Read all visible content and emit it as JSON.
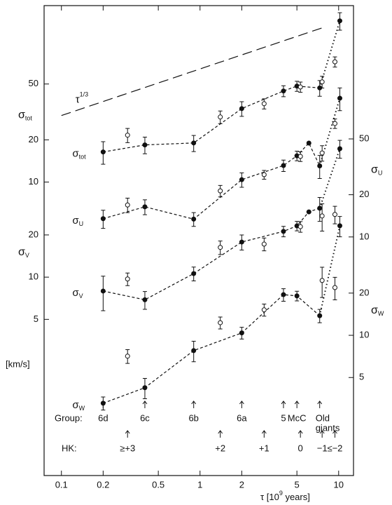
{
  "chart_data": [
    {
      "type": "line",
      "axis": "left",
      "ylabel": "σ",
      "ylabel_sub": "tot",
      "log": true,
      "color": "#111",
      "ylim": [
        0.081,
        181
      ],
      "yticks": [
        10,
        20,
        50
      ],
      "series": [
        {
          "marker": "filled",
          "line": "dashed",
          "tail_line": "dotted",
          "x": [
            0.2,
            0.4,
            0.9,
            2,
            4,
            5,
            7.3,
            10.2
          ],
          "values": [
            16.4,
            18.4,
            19,
            33.4,
            44.6,
            48.3,
            46.9,
            141
          ],
          "errors": [
            3,
            2.5,
            2.5,
            4,
            4,
            4,
            6,
            20
          ]
        },
        {
          "marker": "open",
          "x": [
            0.3,
            1.4,
            2.9,
            5.3,
            7.6,
            9.4
          ],
          "values": [
            21.6,
            29.1,
            36.2,
            47.6,
            51.8,
            72
          ],
          "errors": [
            2.5,
            3,
            3,
            4,
            5,
            6
          ]
        },
        {
          "line": "long-dashed",
          "label": "τ",
          "label_sup": "1/3",
          "x": [
            0.1,
            7.6
          ],
          "values": [
            29.8,
            125.6
          ]
        }
      ]
    },
    {
      "type": "line",
      "axis": "right",
      "ylabel": "σ",
      "ylabel_sub": "U",
      "log": true,
      "color": "#111",
      "ylim": [
        0.199,
        446
      ],
      "yticks": [
        10,
        20,
        50
      ],
      "series": [
        {
          "marker": "filled",
          "line": "dashed",
          "tail_line": "dotted",
          "x": [
            0.2,
            0.4,
            0.9,
            2,
            4,
            5,
            6.1,
            7.3,
            10.2
          ],
          "values": [
            13.5,
            16.4,
            13.4,
            25.6,
            32.3,
            37.9,
            46.7,
            32.1,
            97.5
          ],
          "errors": [
            2,
            2,
            1.5,
            3,
            3,
            3,
            null,
            6,
            18
          ]
        },
        {
          "marker": "open",
          "x": [
            0.3,
            1.4,
            2.9,
            5.3,
            7.6,
            9.4
          ],
          "values": [
            16.9,
            21.3,
            27.8,
            37.5,
            39.7,
            64.4
          ],
          "errors": [
            2,
            2,
            2,
            3,
            5,
            5
          ]
        }
      ]
    },
    {
      "type": "line",
      "axis": "left",
      "ylabel": "σ",
      "ylabel_sub": "V",
      "log": true,
      "color": "#111",
      "ylim": [
        0.385,
        863
      ],
      "yticks": [
        5,
        10,
        20
      ],
      "series": [
        {
          "marker": "filled",
          "line": "dashed",
          "tail_line": "dotted",
          "x": [
            0.2,
            0.4,
            0.9,
            2,
            4,
            5,
            6.1,
            7.3,
            10.2
          ],
          "values": [
            7.96,
            6.9,
            10.6,
            17.8,
            21.2,
            23.2,
            29.2,
            31,
            82.4
          ],
          "errors": [
            2.2,
            1,
            1.2,
            2.2,
            1.8,
            1.8,
            null,
            6,
            12
          ]
        },
        {
          "marker": "open",
          "x": [
            0.3,
            1.4,
            2.9,
            5.3,
            7.6,
            9.4
          ],
          "values": [
            9.7,
            16.3,
            17.2,
            22.9,
            27.3,
            28
          ],
          "errors": [
            1,
            1.8,
            1.8,
            2,
            6,
            4
          ]
        }
      ]
    },
    {
      "type": "line",
      "axis": "right",
      "ylabel": "σ",
      "ylabel_sub": "W",
      "log": true,
      "color": "#111",
      "ylim": [
        1.0,
        2244
      ],
      "yticks": [
        5,
        10,
        20
      ],
      "series": [
        {
          "marker": "filled",
          "line": "dashed",
          "tail_line": "dotted",
          "x": [
            0.2,
            0.4,
            0.9,
            2,
            4,
            5,
            7.3,
            10.2
          ],
          "values": [
            3.28,
            4.23,
            7.78,
            10.4,
            19.5,
            19.1,
            13.8,
            60.4
          ],
          "errors": [
            0.35,
            0.7,
            1.3,
            1,
            2,
            1.5,
            1.5,
            10
          ]
        },
        {
          "marker": "open",
          "x": [
            0.3,
            1.4,
            2.9,
            7.6,
            9.4
          ],
          "values": [
            7.1,
            12.3,
            15.2,
            24.6,
            21.9
          ],
          "errors": [
            0.8,
            1.2,
            1.5,
            6,
            4
          ]
        }
      ]
    }
  ],
  "x_axis": {
    "log": true,
    "xlim": [
      0.075,
      12.8
    ],
    "xticks": [
      0.1,
      0.2,
      0.5,
      1,
      2,
      5,
      10
    ],
    "xlabel": "τ [10",
    "xlabel_sup": "9",
    "xlabel_end": " years]"
  },
  "unit_label": "[km/s]",
  "annotations": {
    "group_label": "Group:",
    "groups": [
      {
        "label": "6d",
        "x": 0.2
      },
      {
        "label": "6c",
        "x": 0.4
      },
      {
        "label": "6b",
        "x": 0.9
      },
      {
        "label": "6a",
        "x": 2
      },
      {
        "label": "5",
        "x": 4
      },
      {
        "label": "McC",
        "x": 5
      },
      {
        "label": "Old",
        "sublabel": "giants",
        "x": 7.3
      }
    ],
    "hk_label": "HK:",
    "hk": [
      {
        "label": "≥+3",
        "x": 0.3
      },
      {
        "label": "+2",
        "x": 1.4
      },
      {
        "label": "+1",
        "x": 2.9
      },
      {
        "label": "0",
        "x": 5.3
      },
      {
        "label": "−1",
        "x": 7.6
      },
      {
        "label": "≤−2",
        "x": 9.4
      }
    ]
  }
}
